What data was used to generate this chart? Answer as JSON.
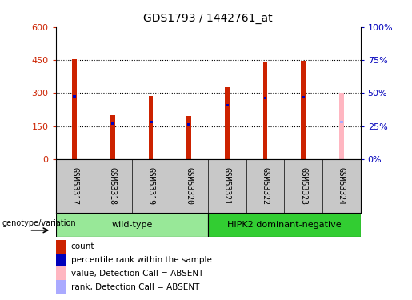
{
  "title": "GDS1793 / 1442761_at",
  "samples": [
    "GSM53317",
    "GSM53318",
    "GSM53319",
    "GSM53320",
    "GSM53321",
    "GSM53322",
    "GSM53323",
    "GSM53324"
  ],
  "count_values": [
    452,
    200,
    285,
    195,
    325,
    440,
    448,
    0
  ],
  "rank_values": [
    285,
    162,
    168,
    158,
    245,
    278,
    282,
    168
  ],
  "absent_count_values": [
    0,
    0,
    0,
    0,
    0,
    0,
    0,
    300
  ],
  "absent_rank_values": [
    0,
    0,
    0,
    0,
    0,
    0,
    0,
    168
  ],
  "ylim_left": [
    0,
    600
  ],
  "ylim_right": [
    0,
    100
  ],
  "yticks_left": [
    0,
    150,
    300,
    450,
    600
  ],
  "ytick_labels_left": [
    "0",
    "150",
    "300",
    "450",
    "600"
  ],
  "yticks_right": [
    0,
    25,
    50,
    75,
    100
  ],
  "ytick_labels_right": [
    "0%",
    "25%",
    "50%",
    "75%",
    "100%"
  ],
  "groups": [
    {
      "label": "wild-type",
      "start": 0,
      "end": 4,
      "color": "#98E898"
    },
    {
      "label": "HIPK2 dominant-negative",
      "start": 4,
      "end": 8,
      "color": "#32CD32"
    }
  ],
  "bar_color_red": "#CC2200",
  "bar_color_blue": "#0000BB",
  "bar_color_pink": "#FFB6C1",
  "bar_color_lightblue": "#AAAAFF",
  "bar_width": 0.12,
  "blue_bar_width": 0.08,
  "grid_color": "black",
  "left_tick_color": "#CC2200",
  "right_tick_color": "#0000BB",
  "background_color": "#ffffff",
  "plot_bg_color": "#ffffff",
  "sample_row_bg": "#c8c8c8",
  "genotype_label": "genotype/variation",
  "legend_items": [
    {
      "label": "count",
      "color": "#CC2200"
    },
    {
      "label": "percentile rank within the sample",
      "color": "#0000BB"
    },
    {
      "label": "value, Detection Call = ABSENT",
      "color": "#FFB6C1"
    },
    {
      "label": "rank, Detection Call = ABSENT",
      "color": "#AAAAFF"
    }
  ]
}
